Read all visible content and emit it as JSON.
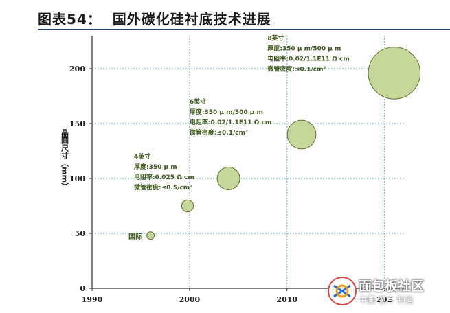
{
  "header": {
    "title": "图表54：  国外碳化硅衬底技术进展"
  },
  "chart_data": {
    "type": "scatter",
    "ylabel": "晶圆尺寸（mm）",
    "xlabel": "",
    "xlim": [
      1990,
      2022
    ],
    "ylim": [
      0,
      230
    ],
    "x_ticks": [
      "1990",
      "2000",
      "2010",
      "202"
    ],
    "y_ticks": [
      "0",
      "50",
      "100",
      "150",
      "200"
    ],
    "grid": true,
    "points": [
      {
        "x": 1996,
        "y": 48,
        "size": 1
      },
      {
        "x": 1999.8,
        "y": 75,
        "size": 2.3
      },
      {
        "x": 2004,
        "y": 100,
        "size": 5.5
      },
      {
        "x": 2011.5,
        "y": 140,
        "size": 7.3
      },
      {
        "x": 2021,
        "y": 196,
        "size": 14.2
      }
    ],
    "annotations": [
      {
        "label": "国际",
        "x": 1996,
        "y": 48
      },
      {
        "lines": [
          "4英寸",
          "厚度:350 μ m",
          "电阻率:0.025 Ω cm",
          "微管密度:≤0.5/cm²"
        ],
        "x": 1994.3,
        "y": 118
      },
      {
        "lines": [
          "6英寸",
          "厚度:350 μ m/500 μ m",
          "电阻率:0.02/1.1E11 Ω cm",
          "微管密度:≤0.1/cm²"
        ],
        "x": 2000,
        "y": 168
      },
      {
        "lines": [
          "8英寸",
          "厚度:350 μ m/500 μ m",
          "电阻率:0.02/1.1E11 Ω cm",
          "微管密度:≤0.1/cm²"
        ],
        "x": 2008,
        "y": 226
      }
    ]
  },
  "watermark": {
    "brand": "面包板社区",
    "sub": "中国·芯片 制造"
  },
  "colors": {
    "bubble_fill": "#c5d79a",
    "bubble_stroke": "#5d7030",
    "grid": "#7fb0d6",
    "axis": "#333333",
    "label_green": "#3d5a1c"
  }
}
